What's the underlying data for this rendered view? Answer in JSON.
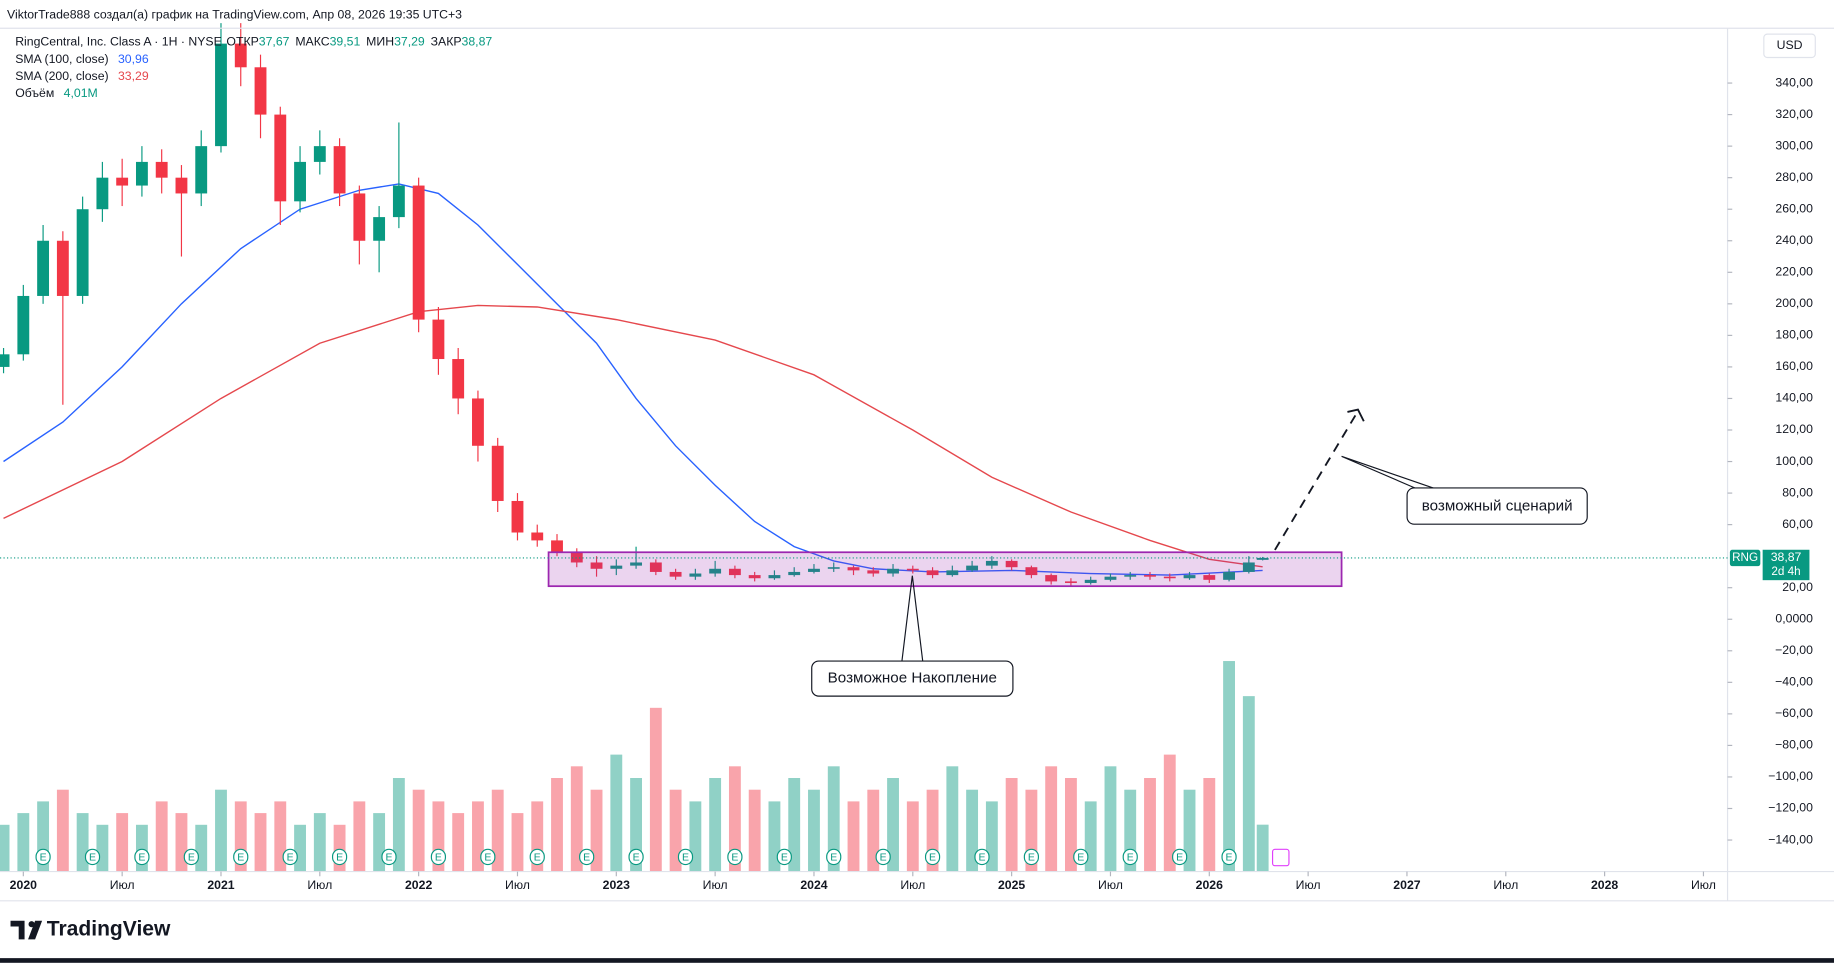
{
  "chart_data": {
    "type": "candlestick",
    "header": "ViktorTrade888 создал(а) график на TradingView.com, Апр 08, 2026 19:35 UTC+3",
    "symbol": "RingCentral, Inc. Class A · 1Н · NYSE",
    "ohlc_legend": [
      {
        "name": "ОТКР",
        "label": "37,67"
      },
      {
        "name": "МАКС",
        "label": "39,51"
      },
      {
        "name": "МИН",
        "label": "37,29"
      },
      {
        "name": "ЗАКР",
        "label": "38,87"
      }
    ],
    "currency": "USD",
    "up_color": "#089981",
    "down_color": "#f23645",
    "x": [
      2019.9,
      2020.0,
      2020.1,
      2020.2,
      2020.3,
      2020.4,
      2020.5,
      2020.6,
      2020.7,
      2020.8,
      2020.9,
      2021.0,
      2021.1,
      2021.2,
      2021.3,
      2021.4,
      2021.5,
      2021.6,
      2021.7,
      2021.8,
      2021.9,
      2022.0,
      2022.1,
      2022.2,
      2022.3,
      2022.4,
      2022.5,
      2022.6,
      2022.7,
      2022.8,
      2022.9,
      2023.0,
      2023.1,
      2023.2,
      2023.3,
      2023.4,
      2023.5,
      2023.6,
      2023.7,
      2023.8,
      2023.9,
      2024.0,
      2024.1,
      2024.2,
      2024.3,
      2024.4,
      2024.5,
      2024.6,
      2024.7,
      2024.8,
      2024.9,
      2025.0,
      2025.1,
      2025.2,
      2025.3,
      2025.4,
      2025.5,
      2025.6,
      2025.7,
      2025.8,
      2025.9,
      2026.0,
      2026.1,
      2026.2,
      2026.27
    ],
    "open": [
      160,
      168,
      205,
      240,
      205,
      260,
      280,
      275,
      290,
      280,
      270,
      300,
      365,
      350,
      320,
      265,
      290,
      300,
      270,
      240,
      255,
      275,
      190,
      165,
      140,
      110,
      75,
      55,
      50,
      42,
      36,
      32,
      34,
      36,
      30,
      27,
      29,
      32,
      28,
      26,
      28,
      30,
      32,
      33,
      31,
      29,
      32,
      31,
      28,
      31,
      34,
      37,
      33,
      28,
      24,
      23,
      25,
      27,
      28,
      27,
      26,
      28,
      25,
      30,
      37.67
    ],
    "high": [
      172,
      212,
      250,
      246,
      268,
      290,
      292,
      300,
      298,
      288,
      310,
      378,
      378,
      358,
      325,
      300,
      310,
      305,
      275,
      262,
      315,
      280,
      198,
      172,
      145,
      115,
      80,
      60,
      54,
      45,
      40,
      38,
      46,
      38,
      32,
      32,
      37,
      34,
      30,
      31,
      33,
      35,
      36,
      34,
      33,
      35,
      34,
      33,
      34,
      37,
      40,
      38,
      34,
      29,
      26,
      27,
      29,
      30,
      30,
      29,
      30,
      29,
      32,
      40,
      39.51
    ],
    "low": [
      156,
      164,
      200,
      136,
      200,
      252,
      262,
      268,
      270,
      230,
      262,
      296,
      338,
      305,
      250,
      258,
      282,
      262,
      225,
      220,
      248,
      182,
      155,
      130,
      100,
      68,
      50,
      46,
      40,
      33,
      27,
      28,
      32,
      28,
      25,
      25,
      27,
      26,
      24,
      25,
      27,
      29,
      30,
      28,
      27,
      27,
      29,
      26,
      27,
      30,
      32,
      31,
      26,
      22,
      21,
      22,
      24,
      25,
      25,
      24,
      25,
      23,
      24,
      29,
      37.29
    ],
    "close": [
      168,
      205,
      240,
      205,
      260,
      280,
      275,
      290,
      280,
      270,
      300,
      365,
      350,
      320,
      265,
      290,
      300,
      270,
      240,
      255,
      275,
      190,
      165,
      140,
      110,
      75,
      55,
      50,
      42,
      36,
      32,
      34,
      36,
      30,
      27,
      29,
      32,
      28,
      26,
      28,
      30,
      32,
      33,
      31,
      29,
      32,
      31,
      28,
      31,
      34,
      37,
      33,
      28,
      24,
      23,
      25,
      27,
      28,
      27,
      26,
      28,
      25,
      30,
      36,
      38.87
    ],
    "volume_name": "Объём",
    "volume_label": "4,01М",
    "volume_ylim": [
      0,
      20
    ],
    "volume": [
      4,
      5,
      6,
      7,
      5,
      4,
      5,
      4,
      6,
      5,
      4,
      7,
      6,
      5,
      6,
      4,
      5,
      4,
      6,
      5,
      8,
      7,
      6,
      5,
      6,
      7,
      5,
      6,
      8,
      9,
      7,
      10,
      8,
      14,
      7,
      6,
      8,
      9,
      7,
      6,
      8,
      7,
      9,
      6,
      7,
      8,
      6,
      7,
      9,
      7,
      6,
      8,
      7,
      9,
      8,
      6,
      9,
      7,
      8,
      10,
      7,
      8,
      18,
      15,
      4.01
    ],
    "sma": [
      {
        "name": "SMA (100, close)",
        "label": "30,96",
        "color": "#2962ff",
        "x": [
          2019.9,
          2020.2,
          2020.5,
          2020.8,
          2021.1,
          2021.4,
          2021.7,
          2021.9,
          2022.1,
          2022.3,
          2022.5,
          2022.7,
          2022.9,
          2023.1,
          2023.3,
          2023.5,
          2023.7,
          2023.9,
          2024.1,
          2024.3,
          2024.6,
          2025.0,
          2025.4,
          2025.8,
          2026.27
        ],
        "values": [
          100,
          125,
          160,
          200,
          235,
          260,
          272,
          276,
          270,
          250,
          225,
          200,
          175,
          140,
          110,
          85,
          62,
          46,
          37,
          32,
          30,
          31,
          29,
          28,
          30.96
        ]
      },
      {
        "name": "SMA (200, close)",
        "label": "33,29",
        "color": "#e5484d",
        "x": [
          2019.9,
          2020.5,
          2021.0,
          2021.5,
          2022.0,
          2022.3,
          2022.6,
          2023.0,
          2023.5,
          2024.0,
          2024.5,
          2024.9,
          2025.3,
          2025.7,
          2026.0,
          2026.27
        ],
        "values": [
          64,
          100,
          140,
          175,
          195,
          199,
          198,
          190,
          177,
          155,
          120,
          90,
          68,
          50,
          38,
          33.29
        ]
      }
    ],
    "price_tag": {
      "symbol": "RNG",
      "price": {
        "value": 38.87,
        "label": "38,87"
      },
      "countdown": "2d 4h"
    },
    "ylim": [
      -160,
      374
    ],
    "yticks": [
      {
        "value": 340,
        "label": "340,00"
      },
      {
        "value": 320,
        "label": "320,00"
      },
      {
        "value": 300,
        "label": "300,00"
      },
      {
        "value": 280,
        "label": "280,00"
      },
      {
        "value": 260,
        "label": "260,00"
      },
      {
        "value": 240,
        "label": "240,00"
      },
      {
        "value": 220,
        "label": "220,00"
      },
      {
        "value": 200,
        "label": "200,00"
      },
      {
        "value": 180,
        "label": "180,00"
      },
      {
        "value": 160,
        "label": "160,00"
      },
      {
        "value": 140,
        "label": "140,00"
      },
      {
        "value": 120,
        "label": "120,00"
      },
      {
        "value": 100,
        "label": "100,00"
      },
      {
        "value": 80,
        "label": "80,00"
      },
      {
        "value": 60,
        "label": "60,00"
      },
      {
        "value": 20,
        "label": "20,00"
      },
      {
        "value": 0,
        "label": "0,0000"
      },
      {
        "value": -20,
        "label": "−20,00"
      },
      {
        "value": -40,
        "label": "−40,00"
      },
      {
        "value": -60,
        "label": "−60,00"
      },
      {
        "value": -80,
        "label": "−80,00"
      },
      {
        "value": -100,
        "label": "−100,00"
      },
      {
        "value": -120,
        "label": "−120,00"
      },
      {
        "value": -140,
        "label": "−140,00"
      }
    ],
    "xlim": [
      2019.882,
      2028.622
    ],
    "xticks": [
      {
        "value": 2020,
        "label": "2020"
      },
      {
        "value": 2020.5,
        "label": "Июл"
      },
      {
        "value": 2021,
        "label": "2021"
      },
      {
        "value": 2021.5,
        "label": "Июл"
      },
      {
        "value": 2022,
        "label": "2022"
      },
      {
        "value": 2022.5,
        "label": "Июл"
      },
      {
        "value": 2023,
        "label": "2023"
      },
      {
        "value": 2023.5,
        "label": "Июл"
      },
      {
        "value": 2024,
        "label": "2024"
      },
      {
        "value": 2024.5,
        "label": "Июл"
      },
      {
        "value": 2025,
        "label": "2025"
      },
      {
        "value": 2025.5,
        "label": "Июл"
      },
      {
        "value": 2026,
        "label": "2026"
      },
      {
        "value": 2026.5,
        "label": "Июл"
      },
      {
        "value": 2027,
        "label": "2027"
      },
      {
        "value": 2027.5,
        "label": "Июл"
      },
      {
        "value": 2028,
        "label": "2028"
      },
      {
        "value": 2028.5,
        "label": "Июл"
      }
    ],
    "annotations": [
      "Возможное Накопление",
      "возможный сценарий"
    ],
    "brand": "TradingView"
  }
}
